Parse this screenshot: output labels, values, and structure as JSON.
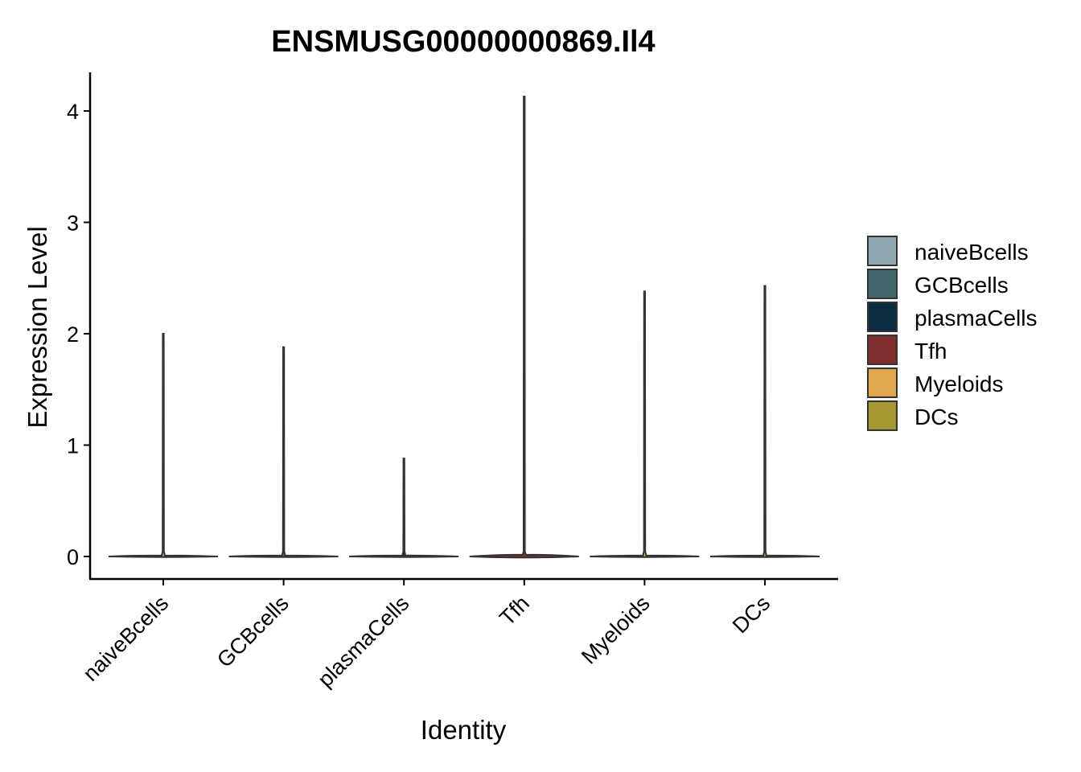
{
  "chart_data": {
    "type": "violin",
    "title": "ENSMUSG00000000869.Il4",
    "xlabel": "Identity",
    "ylabel": "Expression Level",
    "ylim": [
      -0.2,
      4.35
    ],
    "yticks": [
      0,
      1,
      2,
      3,
      4
    ],
    "categories": [
      "naiveBcells",
      "GCBcells",
      "plasmaCells",
      "Tfh",
      "Myeloids",
      "DCs"
    ],
    "series": [
      {
        "name": "naiveBcells",
        "min": 0,
        "max": 2.0,
        "color": "#90A9B5"
      },
      {
        "name": "GCBcells",
        "min": 0,
        "max": 1.88,
        "color": "#44656B"
      },
      {
        "name": "plasmaCells",
        "min": 0,
        "max": 0.88,
        "color": "#0E2C40"
      },
      {
        "name": "Tfh",
        "min": 0,
        "max": 4.13,
        "color": "#7F2F2E"
      },
      {
        "name": "Myeloids",
        "min": 0,
        "max": 2.38,
        "color": "#E3A84F"
      },
      {
        "name": "DCs",
        "min": 0,
        "max": 2.43,
        "color": "#A59731"
      }
    ],
    "legend": {
      "position": "right",
      "items": [
        "naiveBcells",
        "GCBcells",
        "plasmaCells",
        "Tfh",
        "Myeloids",
        "DCs"
      ]
    },
    "grid": false
  }
}
